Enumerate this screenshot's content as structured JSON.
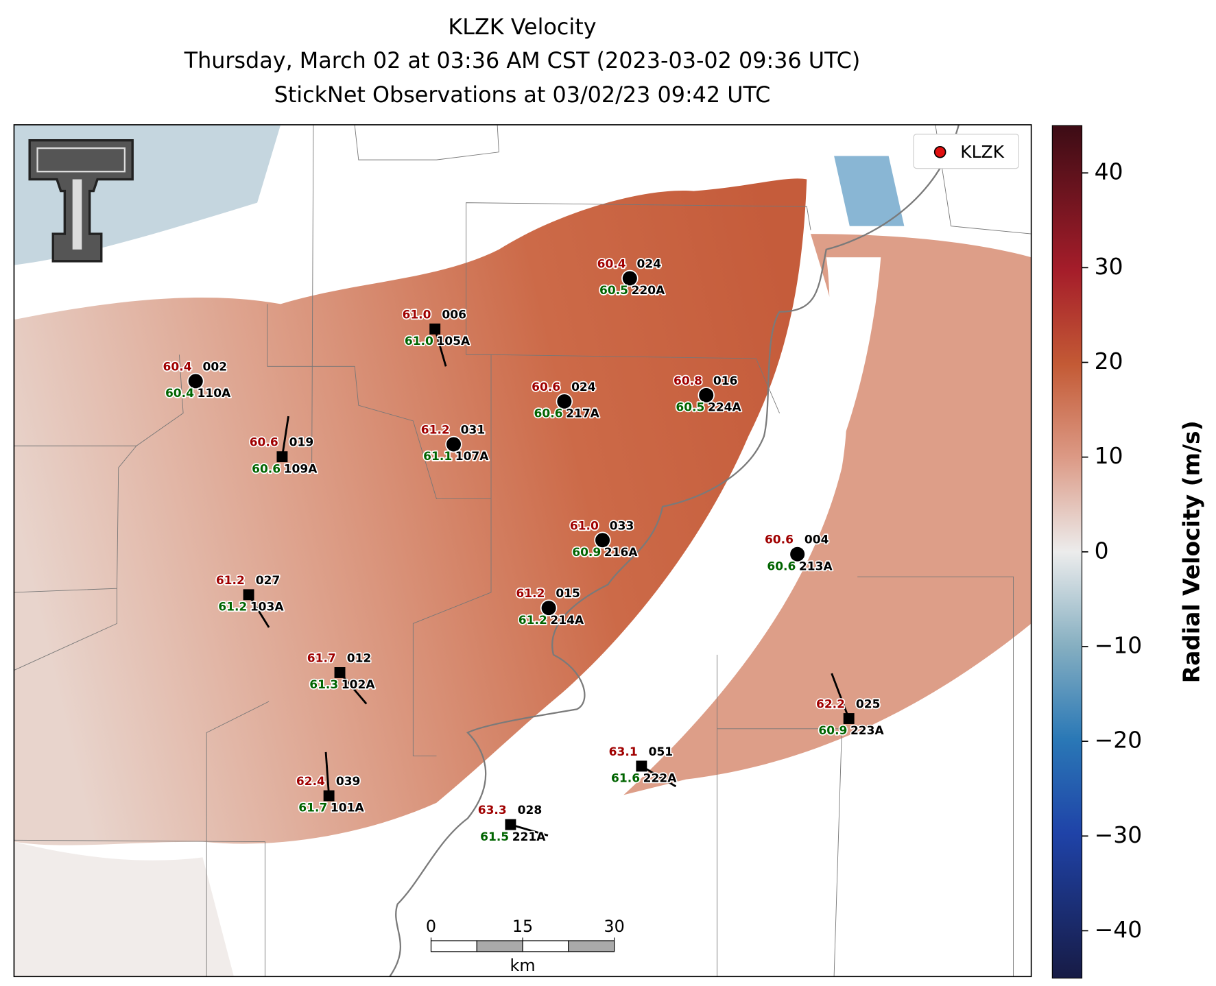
{
  "title": {
    "line1": "KLZK Velocity",
    "line2": "Thursday, March 02 at 03:36 AM CST (2023-03-02 09:36 UTC)",
    "line3": "StickNet Observations at 03/02/23 09:42 UTC"
  },
  "legend": "KLZK",
  "stations": [
    {
      "temperature": "60.4",
      "wind_direction": "024",
      "dewpoint": "60.5",
      "id": "220A"
    },
    {
      "temperature": "61.0",
      "wind_direction": "006",
      "dewpoint": "61.0",
      "id": "105A"
    },
    {
      "temperature": "60.4",
      "wind_direction": "002",
      "dewpoint": "60.4",
      "id": "110A"
    },
    {
      "temperature": "60.6",
      "wind_direction": "024",
      "dewpoint": "60.6",
      "id": "217A"
    },
    {
      "temperature": "60.8",
      "wind_direction": "016",
      "dewpoint": "60.5",
      "id": "224A"
    },
    {
      "temperature": "60.6",
      "wind_direction": "019",
      "dewpoint": "60.6",
      "id": "109A"
    },
    {
      "temperature": "61.2",
      "wind_direction": "031",
      "dewpoint": "61.1",
      "id": "107A"
    },
    {
      "temperature": "61.0",
      "wind_direction": "033",
      "dewpoint": "60.9",
      "id": "216A"
    },
    {
      "temperature": "60.6",
      "wind_direction": "004",
      "dewpoint": "60.6",
      "id": "213A"
    },
    {
      "temperature": "61.2",
      "wind_direction": "027",
      "dewpoint": "61.2",
      "id": "103A"
    },
    {
      "temperature": "61.2",
      "wind_direction": "015",
      "dewpoint": "61.2",
      "id": "214A"
    },
    {
      "temperature": "61.7",
      "wind_direction": "012",
      "dewpoint": "61.3",
      "id": "102A"
    },
    {
      "temperature": "62.2",
      "wind_direction": "025",
      "dewpoint": "60.9",
      "id": "223A"
    },
    {
      "temperature": "63.1",
      "wind_direction": "051",
      "dewpoint": "61.6",
      "id": "222A"
    },
    {
      "temperature": "62.4",
      "wind_direction": "039",
      "dewpoint": "61.7",
      "id": "101A"
    },
    {
      "temperature": "63.3",
      "wind_direction": "028",
      "dewpoint": "61.5",
      "id": "221A"
    }
  ],
  "colorbar": {
    "label": "Radial Velocity (m/s)",
    "lim": [
      -45,
      45
    ],
    "ticks": [
      40,
      30,
      20,
      10,
      0,
      {
        "value": -10,
        "label": "−10"
      },
      {
        "value": -20,
        "label": "−20"
      },
      {
        "value": -30,
        "label": "−30"
      },
      {
        "value": -40,
        "label": "−40"
      }
    ]
  },
  "scale_bar": {
    "ticks": [
      0,
      15,
      30
    ],
    "unit": "km"
  }
}
